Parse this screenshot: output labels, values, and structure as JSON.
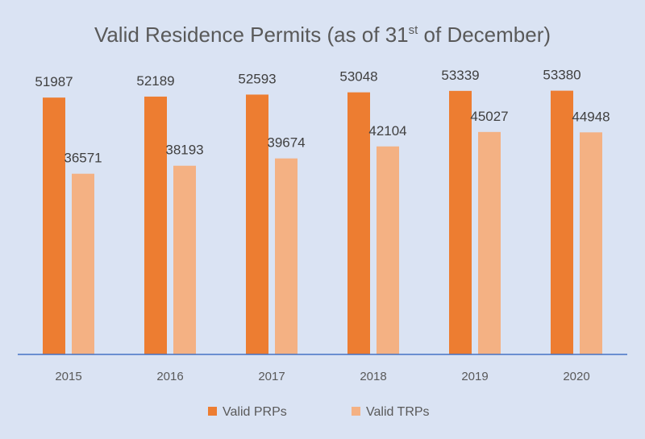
{
  "chart_data": {
    "type": "bar",
    "title": {
      "before_sup": "Valid Residence Permits (as of 31",
      "sup": "st",
      "after_sup": " of December)"
    },
    "categories": [
      "2015",
      "2016",
      "2017",
      "2018",
      "2019",
      "2020"
    ],
    "series": [
      {
        "name": "Valid PRPs",
        "values": [
          51987,
          52189,
          52593,
          53048,
          53339,
          53380
        ],
        "color": "#ed7d31"
      },
      {
        "name": "Valid TRPs",
        "values": [
          36571,
          38193,
          39674,
          42104,
          45027,
          44948
        ],
        "color": "#f4b183"
      }
    ],
    "ylim": [
      0,
      60000
    ],
    "axis_color": "#4472c4",
    "grid": false,
    "legend_position": "bottom",
    "data_labels": true,
    "background": "#dae3f3"
  }
}
